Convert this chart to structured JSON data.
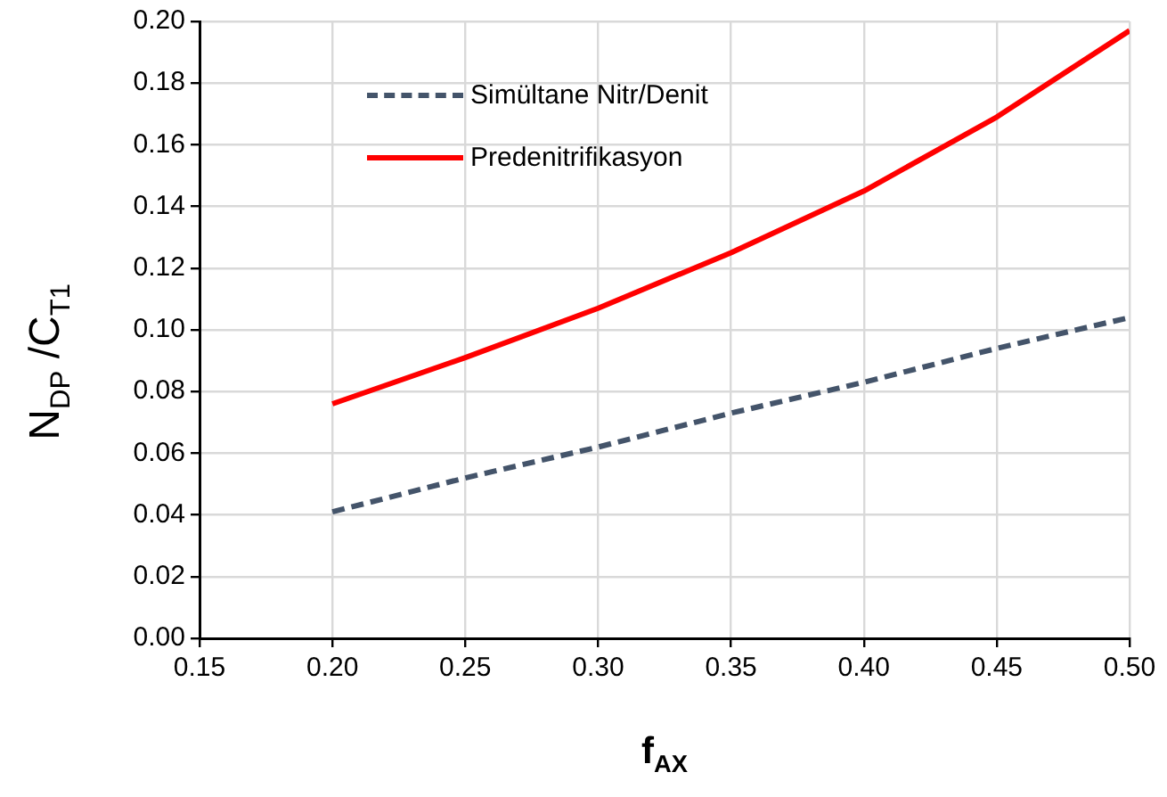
{
  "chart_data": {
    "type": "line",
    "xlabel": "f$_{AX}$",
    "ylabel": "N$_{DP}$ /C$_{T1}$",
    "x": [
      0.2,
      0.25,
      0.3,
      0.35,
      0.4,
      0.45,
      0.5
    ],
    "series": [
      {
        "name": "Simültane Nitr/Denit",
        "color": "#44546a",
        "line_style": "dashed",
        "values": [
          0.041,
          0.052,
          0.062,
          0.073,
          0.083,
          0.094,
          0.104
        ]
      },
      {
        "name": "Predenitrifikasyon",
        "color": "#ff0000",
        "line_style": "solid",
        "values": [
          0.076,
          0.091,
          0.107,
          0.125,
          0.145,
          0.169,
          0.197
        ]
      }
    ],
    "xlim": [
      0.15,
      0.5
    ],
    "xticks": [
      {
        "value": 0.15,
        "label": "0.15"
      },
      {
        "value": 0.2,
        "label": "0.20"
      },
      {
        "value": 0.25,
        "label": "0.25"
      },
      {
        "value": 0.3,
        "label": "0.30"
      },
      {
        "value": 0.35,
        "label": "0.35"
      },
      {
        "value": 0.4,
        "label": "0.40"
      },
      {
        "value": 0.45,
        "label": "0.45"
      },
      {
        "value": 0.5,
        "label": "0.50"
      }
    ],
    "ylim": [
      0,
      0.2
    ],
    "yticks": [
      {
        "value": 0,
        "label": "0.00"
      },
      {
        "value": 0.02,
        "label": "0.02"
      },
      {
        "value": 0.04,
        "label": "0.04"
      },
      {
        "value": 0.06,
        "label": "0.06"
      },
      {
        "value": 0.08,
        "label": "0.08"
      },
      {
        "value": 0.1,
        "label": "0.10"
      },
      {
        "value": 0.12,
        "label": "0.12"
      },
      {
        "value": 0.14,
        "label": "0.14"
      },
      {
        "value": 0.16,
        "label": "0.16"
      },
      {
        "value": 0.18,
        "label": "0.18"
      },
      {
        "value": 0.2,
        "label": "0.20"
      }
    ],
    "grid": true,
    "legend": "top left",
    "marker": "none"
  }
}
